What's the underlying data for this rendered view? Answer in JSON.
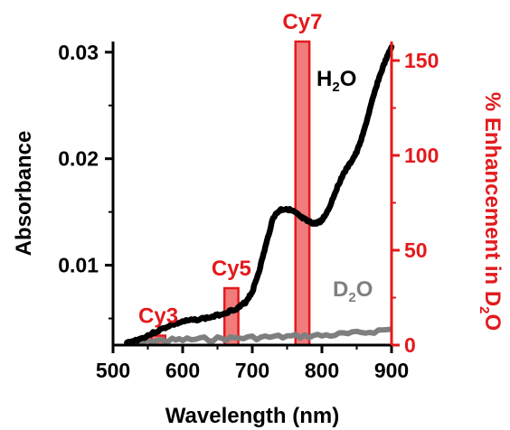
{
  "chart_data": {
    "type": "line",
    "title": "",
    "xlabel": "Wavelength (nm)",
    "ylabel_left": "Absorbance",
    "ylabel_right": {
      "prefix": "% Enhancement in D",
      "sub": "2",
      "suffix": "O"
    },
    "xlim": [
      500,
      900
    ],
    "ylim_left": [
      0.0025,
      0.031
    ],
    "ylim_right": [
      0,
      160
    ],
    "x_ticks": [
      "500",
      "600",
      "700",
      "800",
      "900"
    ],
    "y_left_ticks": [
      "0.01",
      "0.02",
      "0.03"
    ],
    "y_left_tick_values": [
      0.01,
      0.02,
      0.03
    ],
    "y_right_ticks": [
      "0",
      "50",
      "100",
      "150"
    ],
    "y_right_tick_values": [
      0,
      50,
      100,
      150
    ],
    "grid": false,
    "colors": {
      "axis_left": "#000000",
      "axis_right": "#e31a1c",
      "h2o": "#000000",
      "d2o": "#7f7f7f",
      "bar_fill": "#f07c7c",
      "bar_stroke": "#e31a1c"
    },
    "lines": [
      {
        "id": "h2o",
        "label": {
          "prefix": "H",
          "sub": "2",
          "suffix": "O"
        },
        "x": [
          520,
          540,
          560,
          580,
          600,
          620,
          640,
          660,
          680,
          690,
          700,
          710,
          720,
          730,
          740,
          750,
          760,
          770,
          780,
          790,
          800,
          810,
          820,
          830,
          840,
          850,
          860,
          870,
          880,
          890,
          900
        ],
        "y": [
          0.0027,
          0.0031,
          0.0037,
          0.0043,
          0.0047,
          0.0049,
          0.0051,
          0.0055,
          0.006,
          0.0065,
          0.0075,
          0.0095,
          0.012,
          0.0145,
          0.0152,
          0.0153,
          0.015,
          0.0145,
          0.0141,
          0.0139,
          0.0142,
          0.0153,
          0.017,
          0.0185,
          0.0195,
          0.0206,
          0.0225,
          0.0249,
          0.0272,
          0.029,
          0.0305
        ]
      },
      {
        "id": "d2o",
        "label": {
          "prefix": "D",
          "sub": "2",
          "suffix": "O"
        },
        "x": [
          520,
          560,
          600,
          650,
          700,
          750,
          800,
          850,
          900
        ],
        "y": [
          0.0027,
          0.0029,
          0.003,
          0.0031,
          0.0032,
          0.0033,
          0.0034,
          0.0036,
          0.004
        ]
      }
    ],
    "bars": [
      {
        "label": "Cy3",
        "x": 565,
        "value": 5
      },
      {
        "label": "Cy5",
        "x": 670,
        "value": 30
      },
      {
        "label": "Cy7",
        "x": 772,
        "value": 162
      }
    ],
    "bar_width_nm": 20
  }
}
